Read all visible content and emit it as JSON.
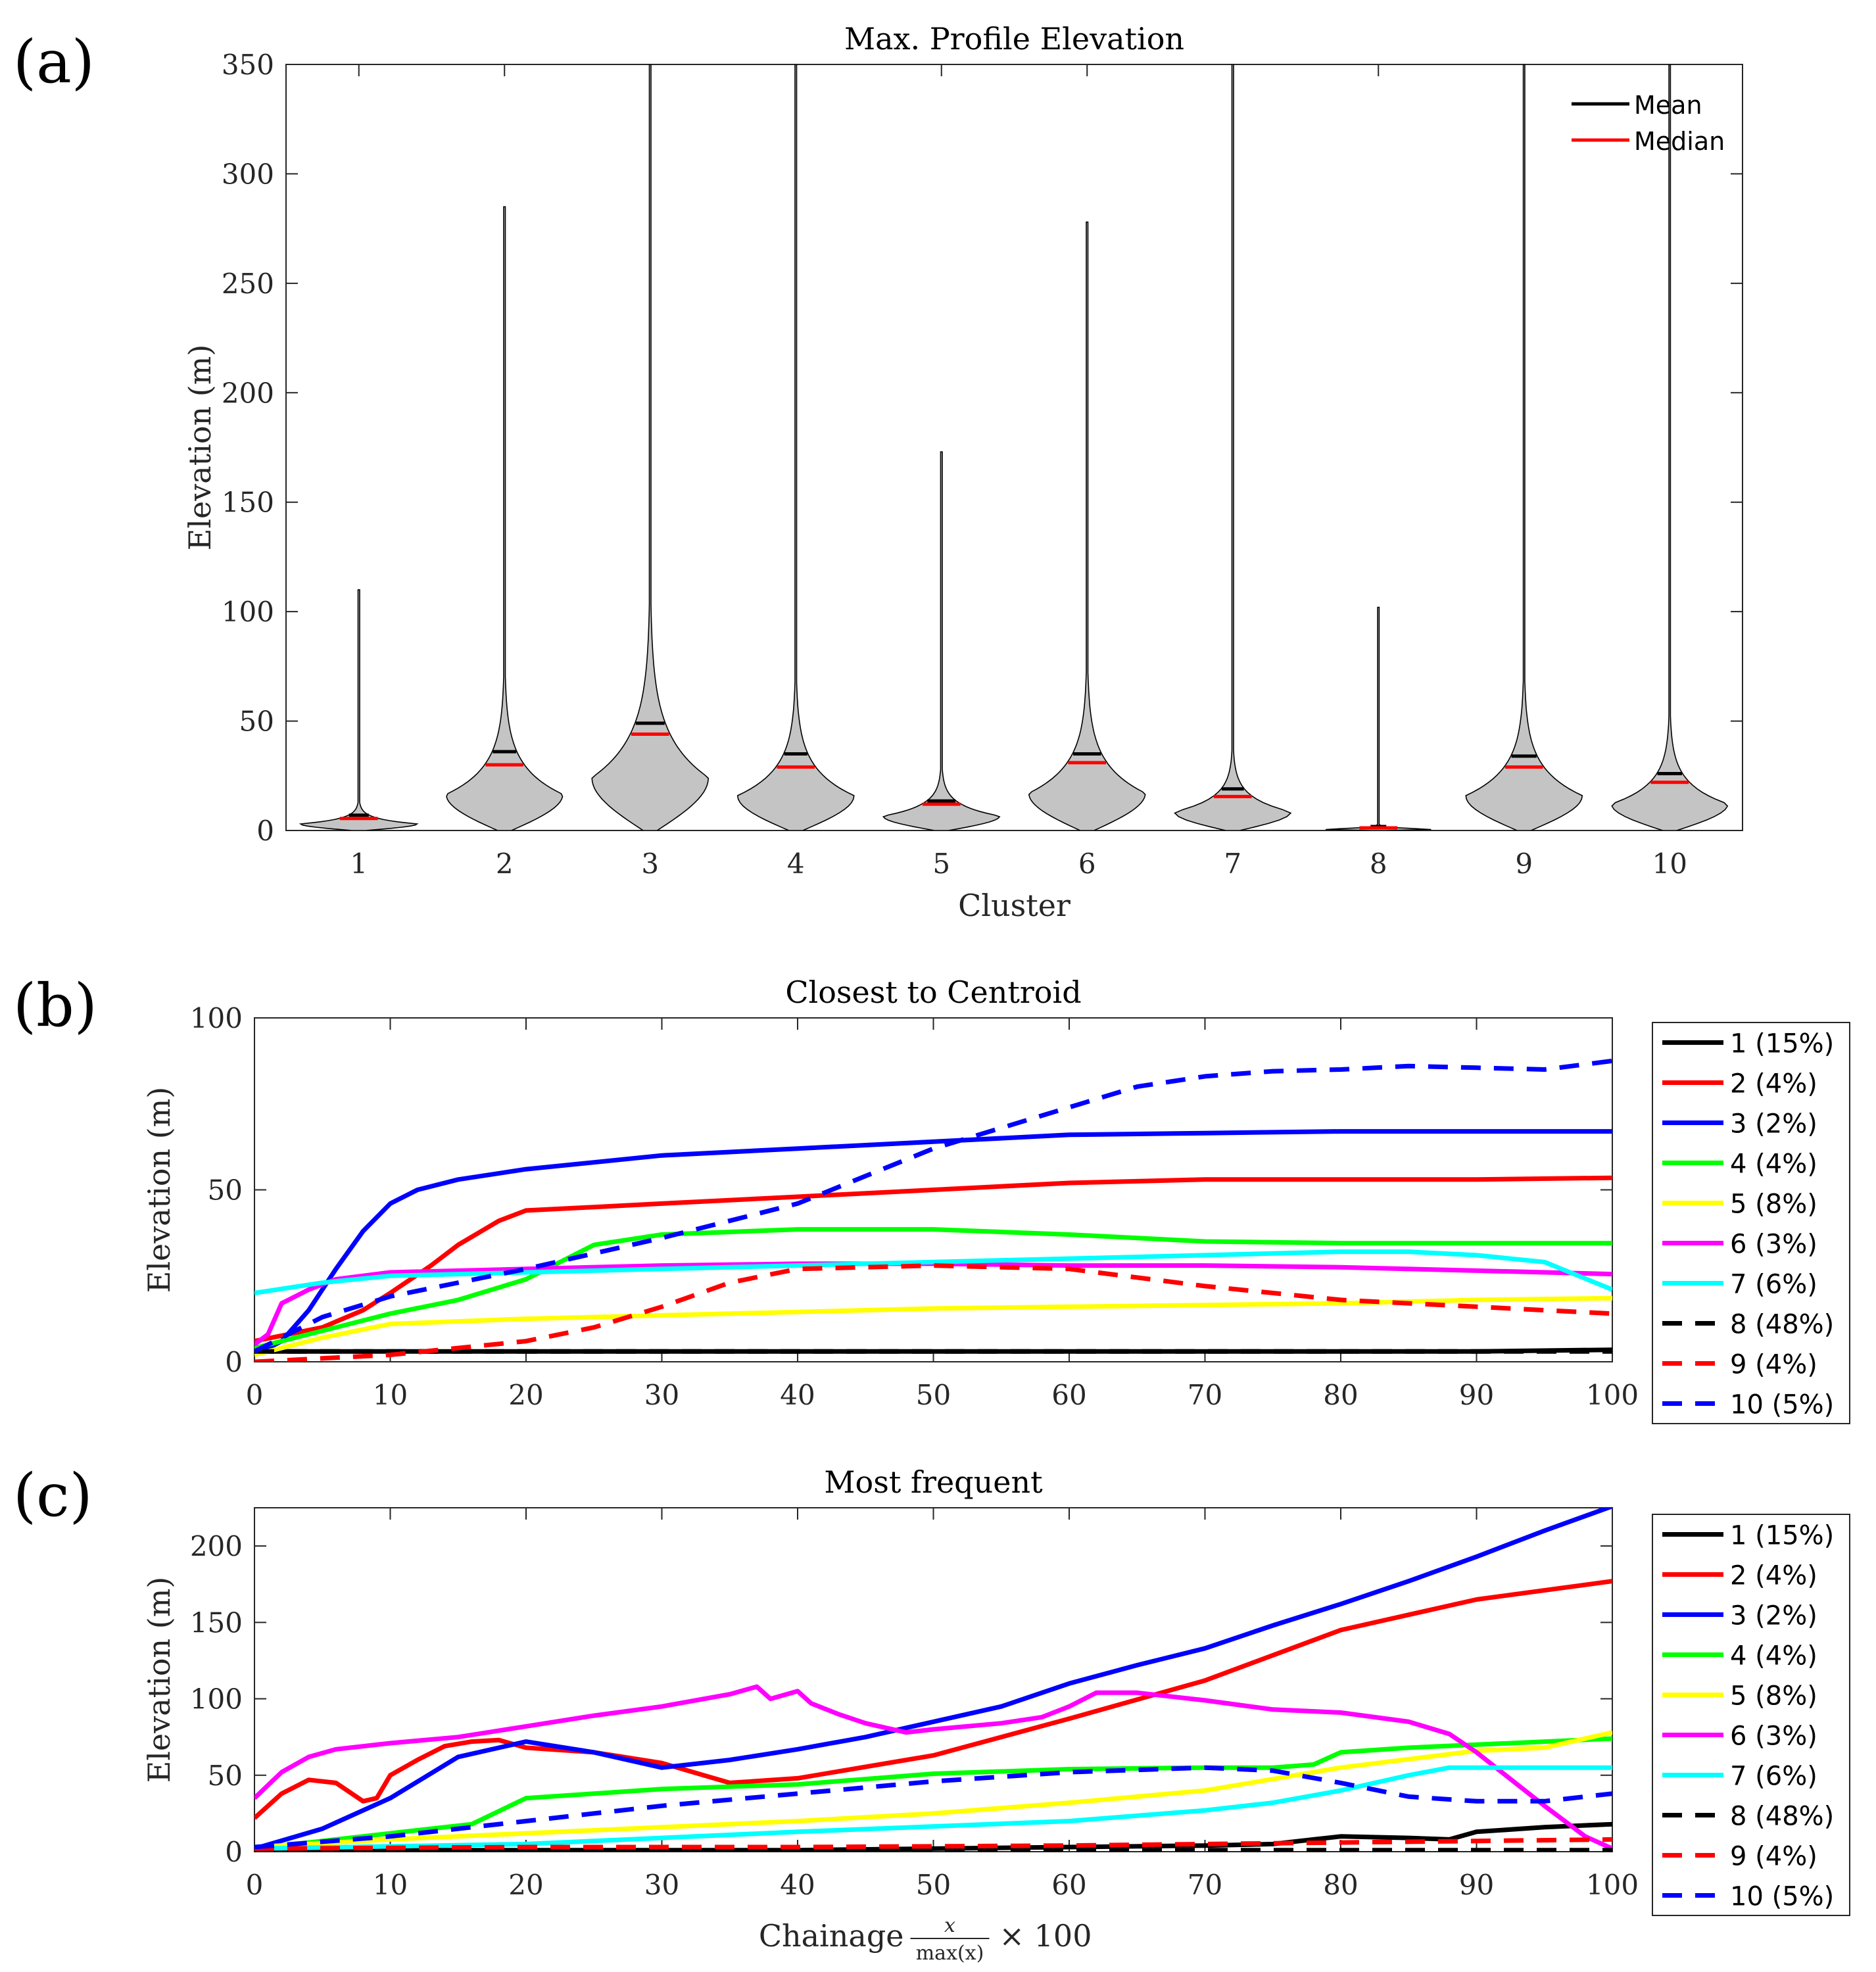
{
  "chart_data": [
    {
      "panel_label": "(a)",
      "type": "violin",
      "title": "Max. Profile Elevation",
      "xlabel": "Cluster",
      "ylabel": "Elevation (m)",
      "ylim": [
        0,
        350
      ],
      "yticks": [
        0,
        50,
        100,
        150,
        200,
        250,
        300,
        350
      ],
      "categories": [
        "1",
        "2",
        "3",
        "4",
        "5",
        "6",
        "7",
        "8",
        "9",
        "10"
      ],
      "max": [
        110,
        285,
        350,
        350,
        173,
        278,
        350,
        102,
        350,
        350
      ],
      "mean": [
        7,
        36,
        49,
        35,
        13.5,
        35,
        19,
        1.8,
        34,
        26
      ],
      "median": [
        5.5,
        30,
        44,
        29,
        12,
        31,
        15.5,
        1.2,
        29,
        22
      ],
      "legend": [
        "Mean",
        "Median"
      ],
      "legend_position": "top-right",
      "colors": {
        "body": "#c4c4c4",
        "mean": "#000000",
        "median": "#ff0000"
      }
    },
    {
      "panel_label": "(b)",
      "type": "line",
      "title": "Closest to Centroid",
      "xlabel": "",
      "ylabel": "Elevation (m)",
      "xlim": [
        0,
        100
      ],
      "ylim": [
        0,
        100
      ],
      "xticks": [
        0,
        10,
        20,
        30,
        40,
        50,
        60,
        70,
        80,
        90,
        100
      ],
      "yticks": [
        0,
        50,
        100
      ],
      "legend_position": "outside-right",
      "series": [
        {
          "name": "1 (15%)",
          "color": "#000000",
          "style": "solid",
          "x": [
            0,
            10,
            30,
            50,
            70,
            90,
            100
          ],
          "y": [
            3,
            3,
            3,
            3,
            3,
            3,
            3.5
          ]
        },
        {
          "name": "2 (4%)",
          "color": "#ff0000",
          "style": "solid",
          "x": [
            0,
            5,
            8,
            10,
            13,
            15,
            18,
            20,
            25,
            30,
            40,
            50,
            60,
            70,
            80,
            90,
            100
          ],
          "y": [
            6,
            10,
            15,
            20,
            28,
            34,
            41,
            44,
            45,
            46,
            48,
            50,
            52,
            53,
            53,
            53,
            53.5
          ]
        },
        {
          "name": "3 (2%)",
          "color": "#0000ff",
          "style": "solid",
          "x": [
            0,
            2,
            4,
            6,
            8,
            10,
            12,
            15,
            20,
            30,
            40,
            50,
            60,
            70,
            80,
            90,
            100
          ],
          "y": [
            2,
            6,
            15,
            27,
            38,
            46,
            50,
            53,
            56,
            60,
            62,
            64,
            66,
            66.5,
            67,
            67,
            67
          ]
        },
        {
          "name": "4 (4%)",
          "color": "#00ff00",
          "style": "solid",
          "x": [
            0,
            5,
            10,
            15,
            20,
            25,
            30,
            40,
            50,
            60,
            70,
            80,
            90,
            100
          ],
          "y": [
            4,
            9,
            14,
            18,
            24,
            34,
            37,
            38.5,
            38.5,
            37,
            35,
            34.5,
            34.5,
            34.5
          ]
        },
        {
          "name": "5 (8%)",
          "color": "#ffff00",
          "style": "solid",
          "x": [
            0,
            5,
            10,
            20,
            30,
            40,
            50,
            60,
            70,
            80,
            90,
            100
          ],
          "y": [
            2,
            7,
            11,
            12.5,
            13.5,
            14.5,
            15.5,
            16,
            16.5,
            17,
            18,
            18.5
          ]
        },
        {
          "name": "6 (3%)",
          "color": "#ff00ff",
          "style": "solid",
          "x": [
            0,
            1,
            2,
            4,
            6,
            10,
            20,
            30,
            40,
            50,
            60,
            70,
            80,
            90,
            100
          ],
          "y": [
            5,
            8,
            17,
            21,
            24,
            26,
            27,
            28,
            28.5,
            28.5,
            28,
            28,
            27.5,
            26.5,
            25.5
          ]
        },
        {
          "name": "7 (6%)",
          "color": "#00ffff",
          "style": "solid",
          "x": [
            0,
            5,
            10,
            20,
            30,
            40,
            50,
            60,
            70,
            80,
            85,
            90,
            95,
            100
          ],
          "y": [
            20,
            23,
            25,
            26,
            27,
            28,
            29,
            30,
            31,
            32,
            32,
            31,
            29,
            21
          ]
        },
        {
          "name": "8 (48%)",
          "color": "#000000",
          "style": "dashed",
          "x": [
            0,
            20,
            40,
            60,
            80,
            100
          ],
          "y": [
            3,
            3,
            3,
            3,
            3,
            3
          ]
        },
        {
          "name": "9 (4%)",
          "color": "#ff0000",
          "style": "dashed",
          "x": [
            0,
            10,
            20,
            25,
            30,
            35,
            40,
            50,
            60,
            70,
            80,
            90,
            100
          ],
          "y": [
            0,
            2,
            6,
            10,
            16,
            23,
            27,
            28,
            27,
            22,
            18,
            16,
            14
          ]
        },
        {
          "name": "10 (5%)",
          "color": "#0000ff",
          "style": "dashed",
          "x": [
            0,
            5,
            10,
            20,
            30,
            40,
            50,
            60,
            65,
            70,
            75,
            80,
            85,
            90,
            95,
            100
          ],
          "y": [
            3,
            13,
            19,
            27,
            36,
            46,
            62,
            74,
            80,
            83,
            84.5,
            85,
            86,
            85.5,
            85,
            87.5
          ]
        }
      ]
    },
    {
      "panel_label": "(c)",
      "type": "line",
      "title": "Most frequent",
      "xlabel": "Chainage",
      "xlabel_fraction": [
        "x",
        "max(x)"
      ],
      "xlabel_suffix": "× 100",
      "ylabel": "Elevation (m)",
      "xlim": [
        0,
        100
      ],
      "ylim": [
        0,
        225
      ],
      "xticks": [
        0,
        10,
        20,
        30,
        40,
        50,
        60,
        70,
        80,
        90,
        100
      ],
      "yticks": [
        0,
        50,
        100,
        150,
        200
      ],
      "legend_position": "outside-right",
      "series": [
        {
          "name": "1 (15%)",
          "color": "#000000",
          "style": "solid",
          "x": [
            0,
            20,
            40,
            60,
            70,
            75,
            78,
            80,
            85,
            88,
            90,
            95,
            100
          ],
          "y": [
            1,
            1,
            1,
            3,
            4,
            5,
            8,
            10,
            9,
            8,
            13,
            16,
            18
          ]
        },
        {
          "name": "2 (4%)",
          "color": "#ff0000",
          "style": "solid",
          "x": [
            0,
            2,
            4,
            6,
            8,
            9,
            10,
            12,
            14,
            16,
            18,
            20,
            25,
            30,
            35,
            40,
            50,
            60,
            70,
            80,
            90,
            100
          ],
          "y": [
            22,
            38,
            47,
            45,
            33,
            35,
            50,
            60,
            69,
            72,
            73,
            68,
            65,
            58,
            45,
            48,
            63,
            87,
            112,
            145,
            165,
            177
          ]
        },
        {
          "name": "3 (2%)",
          "color": "#0000ff",
          "style": "solid",
          "x": [
            0,
            5,
            10,
            15,
            20,
            25,
            30,
            35,
            40,
            45,
            50,
            55,
            60,
            65,
            70,
            75,
            80,
            85,
            90,
            95,
            100
          ],
          "y": [
            2,
            15,
            35,
            62,
            72,
            65,
            55,
            60,
            67,
            75,
            85,
            95,
            110,
            122,
            133,
            148,
            162,
            177,
            193,
            210,
            226
          ]
        },
        {
          "name": "4 (4%)",
          "color": "#00ff00",
          "style": "solid",
          "x": [
            0,
            10,
            16,
            20,
            25,
            30,
            40,
            50,
            60,
            70,
            75,
            78,
            80,
            85,
            90,
            100
          ],
          "y": [
            2,
            12,
            18,
            35,
            38,
            41,
            44,
            51,
            54,
            55,
            55,
            57,
            65,
            68,
            70,
            74
          ]
        },
        {
          "name": "5 (8%)",
          "color": "#ffff00",
          "style": "solid",
          "x": [
            0,
            10,
            20,
            30,
            40,
            50,
            60,
            70,
            80,
            90,
            95,
            100
          ],
          "y": [
            3,
            8,
            12,
            16,
            20,
            25,
            32,
            40,
            55,
            66,
            68,
            78
          ]
        },
        {
          "name": "6 (3%)",
          "color": "#ff00ff",
          "style": "solid",
          "x": [
            0,
            2,
            4,
            6,
            10,
            15,
            20,
            25,
            30,
            35,
            37,
            38,
            40,
            41,
            43,
            45,
            48,
            50,
            55,
            58,
            60,
            62,
            65,
            70,
            75,
            80,
            85,
            88,
            90,
            93,
            95,
            98,
            100
          ],
          "y": [
            35,
            52,
            62,
            67,
            71,
            75,
            82,
            89,
            95,
            103,
            108,
            100,
            105,
            97,
            90,
            84,
            78,
            80,
            84,
            88,
            95,
            104,
            104,
            99,
            93,
            91,
            85,
            77,
            65,
            44,
            30,
            10,
            2
          ]
        },
        {
          "name": "7 (6%)",
          "color": "#00ffff",
          "style": "solid",
          "x": [
            0,
            20,
            40,
            60,
            70,
            75,
            80,
            85,
            88,
            90,
            95,
            100
          ],
          "y": [
            2,
            5,
            13,
            20,
            27,
            32,
            40,
            50,
            55,
            55,
            55,
            55
          ]
        },
        {
          "name": "8 (48%)",
          "color": "#000000",
          "style": "dashed",
          "x": [
            0,
            20,
            40,
            60,
            80,
            100
          ],
          "y": [
            1,
            1,
            1,
            1,
            1,
            1
          ]
        },
        {
          "name": "9 (4%)",
          "color": "#ff0000",
          "style": "dashed",
          "x": [
            0,
            20,
            40,
            60,
            80,
            100
          ],
          "y": [
            2,
            3,
            3,
            4,
            6,
            8
          ]
        },
        {
          "name": "10 (5%)",
          "color": "#0000ff",
          "style": "dashed",
          "x": [
            0,
            10,
            20,
            30,
            40,
            50,
            60,
            70,
            75,
            80,
            85,
            90,
            95,
            100
          ],
          "y": [
            3,
            10,
            20,
            30,
            38,
            46,
            52,
            55,
            53,
            45,
            36,
            33,
            33,
            38
          ]
        }
      ]
    }
  ]
}
